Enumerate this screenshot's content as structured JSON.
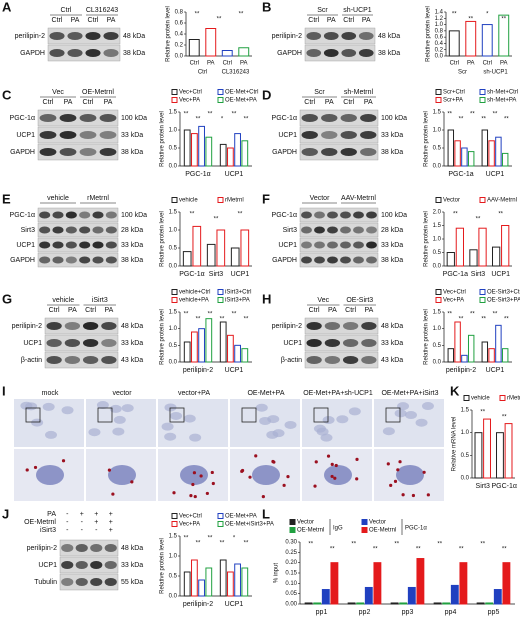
{
  "panels": [
    {
      "letter": "A",
      "blot": {
        "headers": [
          {
            "label": "Ctrl",
            "span": 2
          },
          {
            "label": "CL316243",
            "span": 2
          }
        ],
        "lanes": [
          "Ctrl",
          "PA",
          "Ctrl",
          "PA"
        ],
        "rows": [
          {
            "protein": "perilipin-2",
            "kda": "48 kDa"
          },
          {
            "protein": "GAPDH",
            "kda": "38 kDa"
          }
        ]
      }
    },
    {
      "letter": "B",
      "blot": {
        "headers": [
          {
            "label": "Scr",
            "span": 2
          },
          {
            "label": "sh-UCP1",
            "span": 2
          }
        ],
        "lanes": [
          "Ctrl",
          "PA",
          "Ctrl",
          "PA"
        ],
        "rows": [
          {
            "protein": "perilipin-2",
            "kda": "48 kDa"
          },
          {
            "protein": "GAPDH",
            "kda": "38 kDa"
          }
        ]
      }
    },
    {
      "letter": "C",
      "blot": {
        "headers": [
          {
            "label": "Vec",
            "span": 2
          },
          {
            "label": "OE-Metrnl",
            "span": 2
          }
        ],
        "lanes": [
          "Ctrl",
          "PA",
          "Ctrl",
          "PA"
        ],
        "rows": [
          {
            "protein": "PGC-1α",
            "kda": "100 kDa"
          },
          {
            "protein": "UCP1",
            "kda": "33 kDa"
          },
          {
            "protein": "GAPDH",
            "kda": "38 kDa"
          }
        ]
      }
    },
    {
      "letter": "D",
      "blot": {
        "headers": [
          {
            "label": "Scr",
            "span": 2
          },
          {
            "label": "sh-Metrnl",
            "span": 2
          }
        ],
        "lanes": [
          "Ctrl",
          "PA",
          "Ctrl",
          "PA"
        ],
        "rows": [
          {
            "protein": "PGC-1α",
            "kda": "100 kDa"
          },
          {
            "protein": "UCP1",
            "kda": "33 kDa"
          },
          {
            "protein": "GAPDH",
            "kda": "38 kDa"
          }
        ]
      }
    },
    {
      "letter": "E",
      "blot": {
        "headers": [
          {
            "label": "vehicle",
            "span": 3
          },
          {
            "label": "rMetrnl",
            "span": 3
          }
        ],
        "lanes": [],
        "rows": [
          {
            "protein": "PGC-1α",
            "kda": "100 kDa"
          },
          {
            "protein": "Sirt3",
            "kda": "28 kDa"
          },
          {
            "protein": "UCP1",
            "kda": "33 kDa"
          },
          {
            "protein": "GAPDH",
            "kda": "38 kDa"
          }
        ]
      }
    },
    {
      "letter": "F",
      "blot": {
        "headers": [
          {
            "label": "Vector",
            "span": 3
          },
          {
            "label": "AAV-Metrnl",
            "span": 3
          }
        ],
        "lanes": [],
        "rows": [
          {
            "protein": "PGC-1α",
            "kda": "100 kDa"
          },
          {
            "protein": "Sirt3",
            "kda": "28 kDa"
          },
          {
            "protein": "UCP1",
            "kda": "33 kDa"
          },
          {
            "protein": "GAPDH",
            "kda": "38 kDa"
          }
        ]
      }
    },
    {
      "letter": "G",
      "blot": {
        "headers": [
          {
            "label": "vehicle",
            "span": 2
          },
          {
            "label": "iSirt3",
            "span": 2
          }
        ],
        "lanes": [
          "Ctrl",
          "PA",
          "Ctrl",
          "PA"
        ],
        "rows": [
          {
            "protein": "perilipin-2",
            "kda": "48 kDa"
          },
          {
            "protein": "UCP1",
            "kda": "33 kDa"
          },
          {
            "protein": "β-actin",
            "kda": "43 kDa"
          }
        ]
      }
    },
    {
      "letter": "H",
      "blot": {
        "headers": [
          {
            "label": "Vec",
            "span": 2
          },
          {
            "label": "OE-Sirt3",
            "span": 2
          }
        ],
        "lanes": [
          "Ctrl",
          "PA",
          "Ctrl",
          "PA"
        ],
        "rows": [
          {
            "protein": "perilipin-2",
            "kda": "48 kDa"
          },
          {
            "protein": "UCP1",
            "kda": "33 kDa"
          },
          {
            "protein": "β-actin",
            "kda": "43 kDa"
          }
        ]
      }
    },
    {
      "letter": "I",
      "images": [
        "mock",
        "vector",
        "vector+PA",
        "OE-Met+PA",
        "OE-Met+PA+sh-UCP1",
        "OE-Met+PA+iSirt3"
      ]
    },
    {
      "letter": "J",
      "blot": {
        "conditions": [
          {
            "name": "PA",
            "signs": [
              "-",
              "+",
              "+",
              "+"
            ]
          },
          {
            "name": "OE-Metrnl",
            "signs": [
              "-",
              "-",
              "+",
              "+"
            ]
          },
          {
            "name": "iSirt3",
            "signs": [
              "-",
              "-",
              "-",
              "+"
            ]
          }
        ],
        "rows": [
          {
            "protein": "perilipin-2",
            "kda": "48 kDa"
          },
          {
            "protein": "UCP1",
            "kda": "33 kDa"
          },
          {
            "protein": "Tubulin",
            "kda": "55 kDa"
          }
        ]
      }
    },
    {
      "letter": "K"
    },
    {
      "letter": "L"
    }
  ],
  "chart_data": [
    {
      "type": "bar",
      "ylabel": "Relative protein level",
      "categories": [
        "Ctrl",
        "PA",
        "Ctrl",
        "PA"
      ],
      "groups": [
        "Ctrl",
        "CL316243"
      ],
      "values": [
        0.3,
        0.5,
        0.1,
        0.15
      ],
      "colors": [
        "#222222",
        "#e41a1c",
        "#2040c0",
        "#20a040"
      ],
      "ylim": [
        0,
        0.8
      ],
      "yticks": [
        {
          "value": 0,
          "label": "0.0"
        },
        0.2,
        0.4,
        0.6,
        0.8
      ],
      "annotations": [
        "**",
        "**",
        "**"
      ]
    },
    {
      "type": "bar",
      "ylabel": "Relative protein level",
      "categories": [
        "Ctrl",
        "PA",
        "Ctrl",
        "PA"
      ],
      "groups": [
        "Scr",
        "sh-UCP1"
      ],
      "values": [
        0.8,
        1.1,
        1.0,
        1.3
      ],
      "colors": [
        "#222222",
        "#e41a1c",
        "#2040c0",
        "#20a040"
      ],
      "ylim": [
        0,
        1.4
      ],
      "yticks": [
        {
          "value": 0,
          "label": "0.0"
        },
        0.2,
        0.4,
        0.6,
        0.8,
        {
          "value": 1,
          "label": "1.0"
        },
        1.2,
        1.4
      ],
      "annotations": [
        "**",
        "**",
        "*",
        "**"
      ]
    },
    {
      "type": "bar",
      "ylabel": "Relative protein level",
      "categories": [
        "PGC-1α",
        "UCP1"
      ],
      "series": [
        {
          "name": "Vec+Ctrl",
          "color": "#222222",
          "values": [
            1.0,
            0.6
          ]
        },
        {
          "name": "Vec+PA",
          "color": "#e41a1c",
          "values": [
            0.9,
            0.5
          ]
        },
        {
          "name": "OE-Met+Ctrl",
          "color": "#2040c0",
          "values": [
            1.1,
            0.9
          ]
        },
        {
          "name": "OE-Met+PA",
          "color": "#20a040",
          "values": [
            0.8,
            0.7
          ]
        }
      ],
      "ylim": [
        0,
        1.5
      ],
      "yticks": [
        {
          "value": 0,
          "label": "0.0"
        },
        0.5,
        {
          "value": 1,
          "label": "1.0"
        },
        1.5
      ],
      "annotations": [
        "**",
        "**",
        "**",
        "*",
        "**",
        "**"
      ]
    },
    {
      "type": "bar",
      "ylabel": "Relative protein level",
      "categories": [
        "PGC-1a",
        "UCP1"
      ],
      "series": [
        {
          "name": "Scr+Ctrl",
          "color": "#222222",
          "values": [
            1.0,
            1.0
          ]
        },
        {
          "name": "Scr+PA",
          "color": "#e41a1c",
          "values": [
            0.7,
            0.7
          ]
        },
        {
          "name": "sh-Met+Ctrl",
          "color": "#2040c0",
          "values": [
            0.5,
            0.8
          ]
        },
        {
          "name": "sh-Met+PA",
          "color": "#20a040",
          "values": [
            0.4,
            0.35
          ]
        }
      ],
      "ylim": [
        0,
        1.5
      ],
      "yticks": [
        {
          "value": 0,
          "label": "0.0"
        },
        0.5,
        {
          "value": 1,
          "label": "1.0"
        },
        1.5
      ],
      "annotations": [
        "**",
        "**",
        "**",
        "**",
        "**",
        "**"
      ]
    },
    {
      "type": "bar",
      "ylabel": "Relative protein level",
      "categories": [
        "PGC-1α",
        "Sirt3",
        "UCP1"
      ],
      "series": [
        {
          "name": "vehicle",
          "color": "#222222",
          "values": [
            0.4,
            0.6,
            0.5
          ]
        },
        {
          "name": "rMetrnl",
          "color": "#e41a1c",
          "values": [
            1.1,
            1.0,
            1.0
          ]
        }
      ],
      "ylim": [
        0,
        1.5
      ],
      "yticks": [
        {
          "value": 0,
          "label": "0.0"
        },
        0.5,
        {
          "value": 1,
          "label": "1.0"
        },
        1.5
      ],
      "annotations": [
        "**",
        "**",
        "**"
      ]
    },
    {
      "type": "bar",
      "ylabel": "Relative protein level",
      "categories": [
        "PGC-1a",
        "Sirt3",
        "UCP1"
      ],
      "series": [
        {
          "name": "Vector",
          "color": "#222222",
          "values": [
            0.5,
            0.6,
            0.7
          ]
        },
        {
          "name": "AAV-Metrnl",
          "color": "#e41a1c",
          "values": [
            1.4,
            1.4,
            1.5
          ]
        }
      ],
      "ylim": [
        0,
        2
      ],
      "yticks": [
        {
          "value": 0,
          "label": "0.0"
        },
        0.5,
        {
          "value": 1,
          "label": "1.0"
        },
        1.5,
        {
          "value": 2,
          "label": "2.0"
        }
      ],
      "annotations": [
        "**",
        "**",
        "**"
      ]
    },
    {
      "type": "bar",
      "ylabel": "Relative protein level",
      "categories": [
        "perilipin-2",
        "UCP1"
      ],
      "series": [
        {
          "name": "vehicle+Ctrl",
          "color": "#222222",
          "values": [
            0.6,
            1.2
          ]
        },
        {
          "name": "vehicle+PA",
          "color": "#e41a1c",
          "values": [
            0.9,
            0.8
          ]
        },
        {
          "name": "iSirt3+Ctrl",
          "color": "#2040c0",
          "values": [
            1.0,
            0.5
          ]
        },
        {
          "name": "iSirt3+PA",
          "color": "#20a040",
          "values": [
            1.3,
            0.4
          ]
        }
      ],
      "ylim": [
        0,
        1.5
      ],
      "yticks": [
        {
          "value": 0,
          "label": "0.0"
        },
        0.5,
        {
          "value": 1,
          "label": "1.0"
        },
        1.5
      ],
      "annotations": [
        "**",
        "**",
        "**",
        "**",
        "**",
        "**"
      ]
    },
    {
      "type": "bar",
      "ylabel": "Relative protein level",
      "categories": [
        "perilipin-2",
        "UCP1"
      ],
      "series": [
        {
          "name": "Vec+Ctrl",
          "color": "#222222",
          "values": [
            0.4,
            0.6
          ]
        },
        {
          "name": "Vec+PA",
          "color": "#e41a1c",
          "values": [
            1.2,
            0.4
          ]
        },
        {
          "name": "OE-Sirt3+Ctrl",
          "color": "#2040c0",
          "values": [
            0.2,
            1.1
          ]
        },
        {
          "name": "OE-Sirt3+PA",
          "color": "#20a040",
          "values": [
            0.8,
            0.4
          ]
        }
      ],
      "ylim": [
        0,
        1.5
      ],
      "yticks": [
        {
          "value": 0,
          "label": "0.0"
        },
        0.5,
        {
          "value": 1,
          "label": "1.0"
        },
        1.5
      ],
      "annotations": [
        "**",
        "**",
        "**",
        "**",
        "**",
        "**"
      ]
    },
    {
      "type": "bar",
      "ylabel": "Relative protein level",
      "categories": [
        "perilipin-2",
        "UCP1"
      ],
      "series": [
        {
          "name": "Vec+Ctrl",
          "color": "#222222",
          "values": [
            0.6,
            0.9
          ]
        },
        {
          "name": "Vec+PA",
          "color": "#e41a1c",
          "values": [
            0.9,
            0.6
          ]
        },
        {
          "name": "OE-Met+PA",
          "color": "#2040c0",
          "values": [
            0.4,
            0.8
          ]
        },
        {
          "name": "OE-Met+iSirt3+PA",
          "color": "#20a040",
          "values": [
            0.7,
            0.7
          ]
        }
      ],
      "ylim": [
        0,
        1.5
      ],
      "yticks": [
        {
          "value": 0,
          "label": "0.0"
        },
        0.5,
        {
          "value": 1,
          "label": "1.0"
        },
        1.5
      ],
      "annotations": [
        "**",
        "**",
        "**",
        "**",
        "*",
        "**"
      ]
    },
    {
      "type": "bar",
      "ylabel": "Relative mRNA level",
      "categories": [
        "Sirt3",
        "PGC-1α"
      ],
      "series": [
        {
          "name": "vehicle",
          "color": "#222222",
          "values": [
            1.0,
            1.0
          ]
        },
        {
          "name": "rMetrnl",
          "color": "#e41a1c",
          "values": [
            1.3,
            1.2
          ]
        }
      ],
      "ylim": [
        0,
        1.5
      ],
      "yticks": [
        {
          "value": 0,
          "label": "0.0"
        },
        0.5,
        {
          "value": 1,
          "label": "1.0"
        },
        1.5
      ],
      "annotations": [
        "**",
        "**"
      ]
    },
    {
      "type": "bar",
      "filled": true,
      "ylabel": "% input",
      "categories": [
        "pp1",
        "pp2",
        "pp3",
        "pp4",
        "pp5"
      ],
      "legend_groups": [
        "IgG",
        "PGC-1α"
      ],
      "series": [
        {
          "name": "Vector",
          "color": "#222222",
          "values": [
            0.005,
            0.005,
            0.005,
            0.005,
            0.005
          ]
        },
        {
          "name": "OE-Metrnl",
          "color": "#20a040",
          "values": [
            0.005,
            0.005,
            0.005,
            0.005,
            0.005
          ]
        },
        {
          "name": "Vector",
          "color": "#2040c0",
          "values": [
            0.07,
            0.08,
            0.08,
            0.09,
            0.07
          ]
        },
        {
          "name": "OE-Metrnl",
          "color": "#e41a1c",
          "values": [
            0.2,
            0.2,
            0.22,
            0.2,
            0.2
          ]
        }
      ],
      "ylim": [
        0,
        0.3
      ],
      "yticks": [
        {
          "value": 0,
          "label": "0.00"
        },
        0.05,
        {
          "value": 0.1,
          "label": "0.10"
        },
        0.15,
        {
          "value": 0.2,
          "label": "0.20"
        },
        0.25,
        {
          "value": 0.3,
          "label": "0.30"
        }
      ],
      "annotations": [
        "**",
        "**",
        "**",
        "**",
        "**",
        "**",
        "**",
        "**",
        "**",
        "**"
      ]
    }
  ]
}
